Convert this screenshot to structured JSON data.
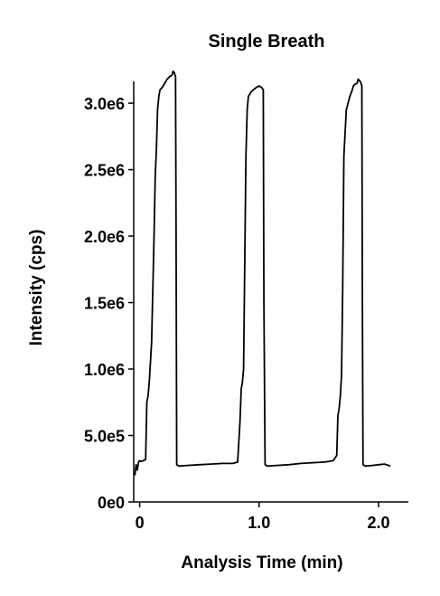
{
  "chart_data": {
    "type": "line",
    "title": "Single Breath",
    "xlabel": "Analysis Time (min)",
    "ylabel": "Intensity (cps)",
    "xlim": [
      -0.05,
      2.25
    ],
    "ylim": [
      0,
      3300000.0
    ],
    "x_ticks": [
      {
        "value": 0,
        "label": "0"
      },
      {
        "value": 1.0,
        "label": "1.0"
      },
      {
        "value": 2.0,
        "label": "2.0"
      }
    ],
    "y_ticks": [
      {
        "value": 0,
        "label": "0e0"
      },
      {
        "value": 500000,
        "label": "5.0e5"
      },
      {
        "value": 1000000,
        "label": "1.0e6"
      },
      {
        "value": 1500000,
        "label": "1.5e6"
      },
      {
        "value": 2000000,
        "label": "2.0e6"
      },
      {
        "value": 2500000,
        "label": "2.5e6"
      },
      {
        "value": 3000000,
        "label": "3.0e6"
      }
    ],
    "grid": false,
    "legend": "none",
    "line_color": "#000000",
    "series": [
      {
        "x": [
          -0.04,
          -0.03,
          -0.02,
          -0.01,
          0.0,
          0.01,
          0.03,
          0.05,
          0.06,
          0.07,
          0.08,
          0.09,
          0.1,
          0.12,
          0.13,
          0.14,
          0.15,
          0.16,
          0.17,
          0.19,
          0.21,
          0.23,
          0.25,
          0.27,
          0.28,
          0.29,
          0.3,
          0.305,
          0.31,
          0.33,
          0.4,
          0.5,
          0.6,
          0.7,
          0.78,
          0.82,
          0.84,
          0.85,
          0.86,
          0.87,
          0.88,
          0.89,
          0.9,
          0.91,
          0.93,
          0.95,
          0.98,
          1.0,
          1.02,
          1.035,
          1.04,
          1.05,
          1.07,
          1.15,
          1.25,
          1.35,
          1.45,
          1.55,
          1.62,
          1.65,
          1.66,
          1.67,
          1.68,
          1.69,
          1.7,
          1.71,
          1.73,
          1.76,
          1.78,
          1.79,
          1.8,
          1.82,
          1.83,
          1.85,
          1.86,
          1.865,
          1.87,
          1.89,
          1.95,
          2.0,
          2.05,
          2.1
        ],
        "y": [
          200000,
          280000,
          240000,
          300000,
          310000,
          305000,
          310000,
          320000,
          750000,
          800000,
          900000,
          1050000,
          1200000,
          2000000,
          2450000,
          2650000,
          2950000,
          3050000,
          3100000,
          3120000,
          3150000,
          3180000,
          3200000,
          3210000,
          3240000,
          3230000,
          3200000,
          2000000,
          280000,
          270000,
          275000,
          280000,
          285000,
          290000,
          290000,
          300000,
          600000,
          850000,
          900000,
          1000000,
          1800000,
          2600000,
          2950000,
          3050000,
          3080000,
          3100000,
          3120000,
          3130000,
          3120000,
          3100000,
          1500000,
          280000,
          270000,
          275000,
          280000,
          290000,
          295000,
          300000,
          310000,
          350000,
          650000,
          700000,
          800000,
          950000,
          1600000,
          2600000,
          2950000,
          3050000,
          3100000,
          3130000,
          3140000,
          3150000,
          3180000,
          3160000,
          3130000,
          1500000,
          280000,
          270000,
          275000,
          280000,
          285000,
          270000
        ]
      }
    ]
  }
}
